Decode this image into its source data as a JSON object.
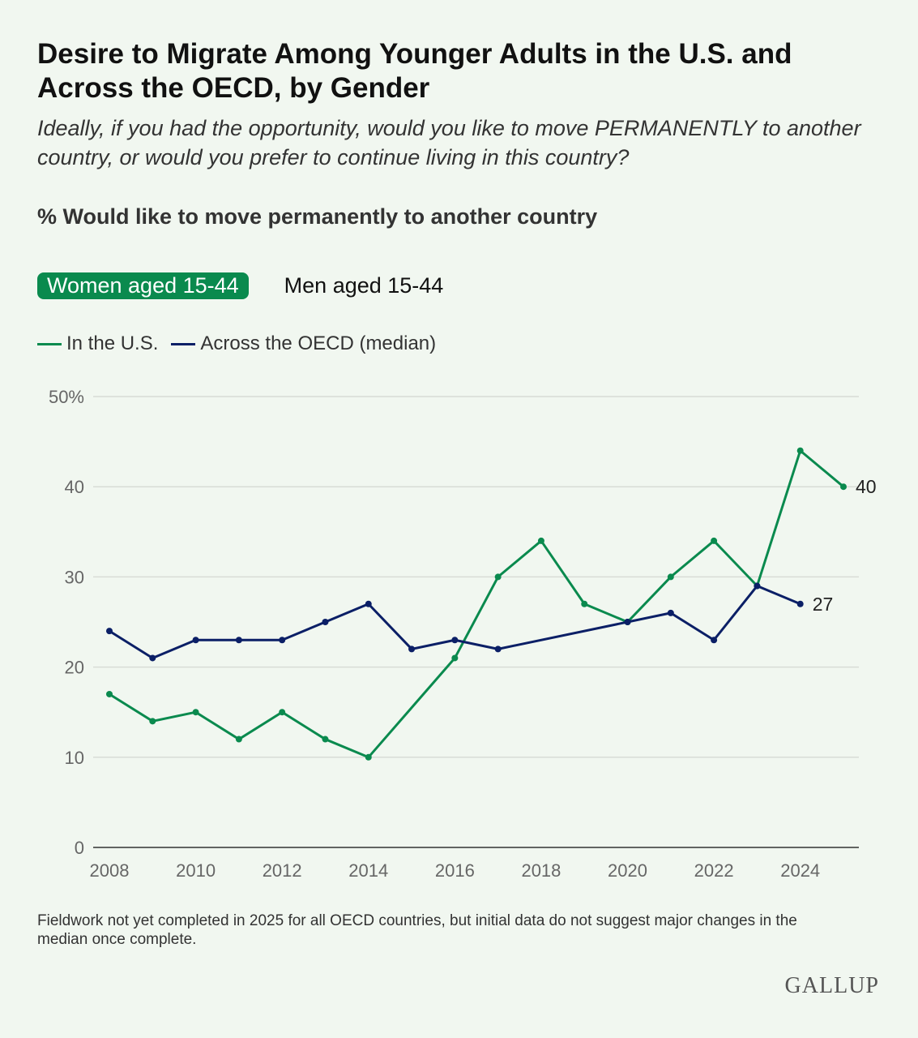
{
  "title": "Desire to Migrate Among Younger Adults in the U.S. and Across the OECD, by Gender",
  "subtitle": "Ideally, if you had the opportunity, would you like to move PERMANENTLY to another country, or would you prefer to continue living in this country?",
  "measure": "% Would like to move permanently to another country",
  "tabs": [
    {
      "label": "Women aged 15-44",
      "active": true
    },
    {
      "label": "Men aged 15-44",
      "active": false
    }
  ],
  "note": "Fieldwork not yet completed in 2025 for all OECD countries, but initial data do not suggest major changes in the median once complete.",
  "logo": "GALLUP",
  "colors": {
    "us": "#0a8a4e",
    "oecd": "#0b1f66",
    "background": "#f1f7f0"
  },
  "chart_data": {
    "type": "line",
    "x": [
      2008,
      2009,
      2010,
      2011,
      2012,
      2013,
      2014,
      2015,
      2016,
      2017,
      2018,
      2019,
      2020,
      2021,
      2022,
      2023,
      2024,
      2025
    ],
    "series": [
      {
        "name": "In the U.S.",
        "color": "#0a8a4e",
        "values": [
          17,
          14,
          15,
          12,
          15,
          12,
          10,
          null,
          21,
          30,
          34,
          27,
          25,
          30,
          34,
          29,
          44,
          40
        ],
        "end_label": "40"
      },
      {
        "name": "Across the OECD (median)",
        "color": "#0b1f66",
        "values": [
          24,
          21,
          23,
          23,
          23,
          25,
          27,
          22,
          23,
          22,
          null,
          null,
          25,
          26,
          23,
          29,
          27,
          null
        ],
        "end_label": "27"
      }
    ],
    "xticks": [
      "2008",
      "2010",
      "2012",
      "2014",
      "2016",
      "2018",
      "2020",
      "2022",
      "2024"
    ],
    "yticks": [
      "0",
      "10",
      "20",
      "30",
      "40",
      "50%"
    ],
    "ylim": [
      0,
      50
    ],
    "xlim": [
      2008,
      2025
    ],
    "grid": true,
    "legend": "top-left"
  }
}
